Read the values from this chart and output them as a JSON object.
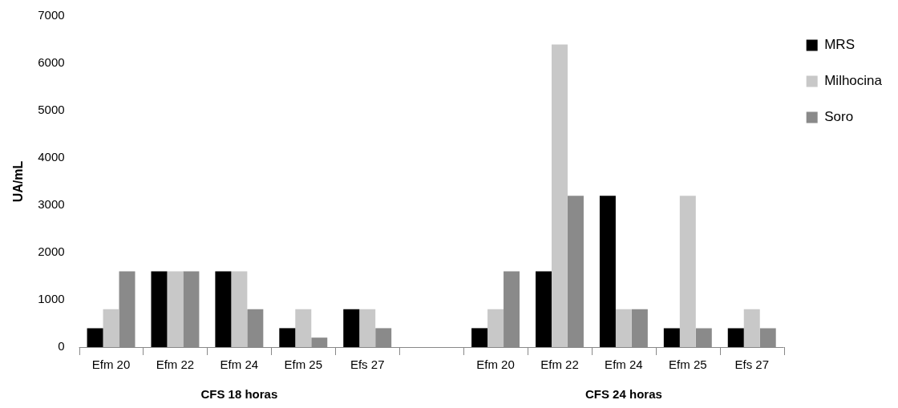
{
  "chart_data": {
    "type": "bar",
    "ylabel": "UA/mL",
    "categories": [
      "Efm 20",
      "Efm 22",
      "Efm 24",
      "Efm 25",
      "Efs 27",
      null,
      "Efm 20",
      "Efm 22",
      "Efm 24",
      "Efm 25",
      "Efs 27"
    ],
    "series": [
      {
        "name": "MRS",
        "color": "#000000",
        "values": [
          400,
          1600,
          1600,
          400,
          800,
          null,
          400,
          1600,
          3200,
          400,
          400
        ]
      },
      {
        "name": "Milhocina",
        "color": "#c8c8c8",
        "values": [
          800,
          1600,
          1600,
          800,
          800,
          null,
          800,
          6400,
          800,
          3200,
          800
        ]
      },
      {
        "name": "Soro",
        "color": "#8a8a8a",
        "values": [
          1600,
          1600,
          800,
          200,
          400,
          null,
          1600,
          3200,
          800,
          400,
          400
        ]
      }
    ],
    "ylim": [
      0,
      7000
    ],
    "yticks": [
      0,
      1000,
      2000,
      3000,
      4000,
      5000,
      6000,
      7000
    ],
    "grid": false,
    "legend": "top right",
    "annotations": [
      "CFS 18 horas",
      "CFS 24 horas"
    ]
  }
}
